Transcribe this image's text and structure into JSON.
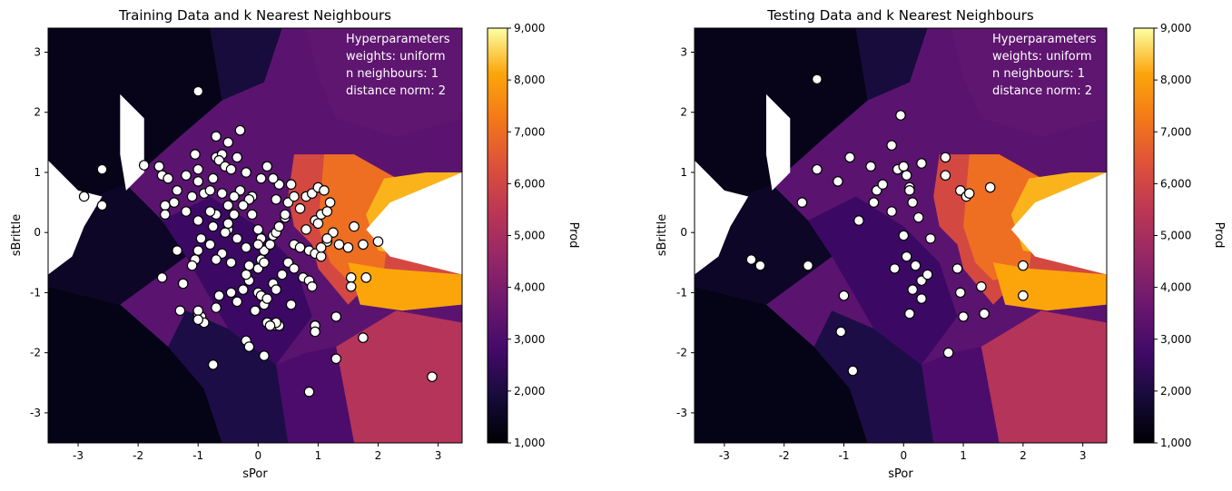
{
  "colorbar": {
    "label": "Prod",
    "ticks": [
      "1,000",
      "2,000",
      "3,000",
      "4,000",
      "5,000",
      "6,000",
      "7,000",
      "8,000",
      "9,000"
    ],
    "vmin": 1000,
    "vmax": 9000,
    "colormap": "inferno"
  },
  "hyperparameters": {
    "header": "Hyperparameters",
    "weights": "weights: uniform",
    "neighbours": "n neighbours: 1",
    "norm": "distance norm: 2"
  },
  "panels": [
    {
      "title": "Training Data and k Nearest Neighbours",
      "xlabel": "sPor",
      "ylabel": "sBrittle"
    },
    {
      "title": "Testing Data and k Nearest Neighbours",
      "xlabel": "sPor",
      "ylabel": "sBrittle"
    }
  ],
  "chart_data": [
    {
      "type": "scatter",
      "title": "Training Data and k Nearest Neighbours",
      "xlabel": "sPor",
      "ylabel": "sBrittle",
      "xlim": [
        -3.5,
        3.4
      ],
      "ylim": [
        -3.5,
        3.4
      ],
      "xticks": [
        "-3",
        "-2",
        "-1",
        "0",
        "1",
        "2",
        "3"
      ],
      "yticks": [
        "-3",
        "-2",
        "-1",
        "0",
        "1",
        "2",
        "3"
      ],
      "series": [
        {
          "x": [
            -1.0,
            -2.6,
            -2.6,
            -2.9,
            -1.9,
            -1.65,
            -1.6,
            -1.5,
            -1.4,
            -1.55,
            -1.55,
            -1.35,
            -1.2,
            -1.0,
            -1.0,
            -1.05,
            -1.2,
            -1.1,
            -0.9,
            -0.8,
            -0.75,
            -0.7,
            -0.6,
            -0.5,
            -0.7,
            -0.65,
            -0.55,
            -0.45,
            -0.35,
            -0.3,
            -0.2,
            -0.4,
            -0.5,
            -0.7,
            -0.8,
            -1.0,
            -0.95,
            -1.0,
            -0.8,
            -0.6,
            -0.5,
            -0.35,
            -0.2,
            -0.15,
            0.0,
            0.05,
            0.1,
            0.2,
            0.25,
            0.3,
            0.35,
            0.45,
            0.5,
            0.6,
            0.55,
            0.35,
            0.25,
            0.15,
            0.05,
            -0.1,
            -0.15,
            -0.3,
            -0.5,
            -0.55,
            -0.7,
            -1.05,
            -1.1,
            -1.25,
            -1.35,
            -1.6,
            -1.3,
            -1.0,
            -0.95,
            -0.9,
            -0.7,
            -0.65,
            -0.45,
            -0.35,
            -0.25,
            -0.15,
            0.0,
            0.05,
            0.1,
            0.15,
            0.25,
            0.3,
            0.4,
            0.5,
            0.6,
            0.7,
            0.85,
            0.95,
            1.05,
            1.15,
            1.25,
            1.35,
            1.5,
            1.6,
            1.75,
            2.0,
            0.8,
            0.9,
            1.0,
            1.1,
            1.2,
            0.95,
            1.05,
            1.15,
            1.0,
            0.8,
            0.7,
            0.45,
            0.3,
            0.0,
            -0.1,
            -0.25,
            -0.4,
            -0.6,
            -0.75,
            -0.45,
            -0.2,
            -0.05,
            0.15,
            0.3,
            1.55,
            1.55,
            1.8,
            -1.0,
            -1.0,
            -0.2,
            -0.15,
            0.1,
            0.35,
            0.55,
            0.95,
            0.95,
            1.3,
            1.3,
            1.75,
            0.85,
            -0.75,
            2.9,
            0.05,
            0.6,
            0.75,
            0.85,
            0.9,
            0.3,
            0.2,
            0.0,
            0.1,
            1.05,
            1.15
          ],
          "y": [
            2.35,
            1.05,
            0.45,
            0.6,
            1.12,
            1.1,
            0.95,
            0.9,
            0.5,
            0.45,
            0.3,
            0.7,
            0.35,
            0.85,
            1.05,
            1.3,
            0.95,
            0.6,
            0.65,
            0.7,
            0.9,
            1.25,
            1.3,
            1.5,
            1.6,
            1.2,
            1.1,
            1.05,
            1.25,
            1.7,
            1.0,
            0.3,
            0.45,
            0.3,
            0.35,
            0.2,
            -0.1,
            -0.3,
            -0.2,
            -0.35,
            0.05,
            -0.1,
            -0.25,
            -0.55,
            -0.6,
            -0.45,
            -0.3,
            -0.2,
            -0.05,
            0.0,
            0.1,
            0.25,
            0.5,
            0.6,
            0.8,
            0.8,
            0.9,
            1.1,
            0.9,
            0.6,
            0.55,
            0.7,
            0.15,
            0.0,
            -0.45,
            -0.45,
            -0.55,
            -0.85,
            -0.3,
            -0.75,
            -1.3,
            -1.35,
            -1.4,
            -1.5,
            -1.25,
            -1.05,
            -1.0,
            -1.15,
            -0.95,
            -0.8,
            -1.0,
            -1.05,
            -1.2,
            -1.1,
            -0.85,
            -0.95,
            -0.7,
            -0.5,
            -0.2,
            -0.25,
            -0.3,
            -0.35,
            -0.4,
            -0.15,
            0.0,
            -0.2,
            -0.25,
            0.1,
            -0.2,
            -0.15,
            0.6,
            0.65,
            0.75,
            0.7,
            0.5,
            0.2,
            0.3,
            0.35,
            0.15,
            0.05,
            0.4,
            0.3,
            0.55,
            0.05,
            0.3,
            0.45,
            0.6,
            0.65,
            0.1,
            -0.5,
            -0.7,
            -1.3,
            -1.5,
            -1.55,
            -0.75,
            -0.9,
            -0.75,
            -1.3,
            -1.45,
            -1.8,
            -1.9,
            -2.05,
            -1.55,
            -1.2,
            -1.55,
            -1.65,
            -1.4,
            -2.1,
            -1.75,
            -2.65,
            -2.2,
            -2.4,
            -0.1,
            -0.6,
            -0.75,
            -0.8,
            -0.9,
            -1.5,
            -1.55,
            -0.2,
            -0.5,
            -0.25,
            -0.1
          ],
          "marker_style": "white circles, black edge"
        }
      ]
    },
    {
      "type": "scatter",
      "title": "Testing Data and k Nearest Neighbours",
      "xlabel": "sPor",
      "ylabel": "sBrittle",
      "xlim": [
        -3.5,
        3.4
      ],
      "ylim": [
        -3.5,
        3.4
      ],
      "xticks": [
        "-3",
        "-2",
        "-1",
        "0",
        "1",
        "2",
        "3"
      ],
      "yticks": [
        "-3",
        "-2",
        "-1",
        "0",
        "1",
        "2",
        "3"
      ],
      "series": [
        {
          "x": [
            -1.45,
            -0.05,
            -1.45,
            -1.7,
            -1.1,
            -0.9,
            -0.55,
            -0.45,
            -0.35,
            -0.2,
            -0.1,
            0.0,
            0.05,
            0.15,
            0.25,
            0.1,
            -0.5,
            -0.75,
            -0.2,
            0.0,
            0.1,
            0.3,
            0.45,
            0.7,
            0.7,
            0.95,
            1.05,
            1.1,
            1.45,
            -2.55,
            -2.4,
            -1.6,
            -1.0,
            -0.15,
            0.05,
            0.15,
            0.3,
            0.4,
            0.1,
            0.3,
            0.2,
            0.9,
            0.95,
            1.0,
            1.3,
            1.35,
            2.0,
            2.0,
            -1.05,
            -0.85,
            0.75
          ],
          "y": [
            2.55,
            1.95,
            1.05,
            0.5,
            0.85,
            1.25,
            1.1,
            0.7,
            0.8,
            1.45,
            1.05,
            1.1,
            0.95,
            0.5,
            0.25,
            0.75,
            0.5,
            0.2,
            0.35,
            -0.05,
            0.7,
            1.15,
            -0.1,
            0.95,
            1.25,
            0.7,
            0.6,
            0.65,
            0.75,
            -0.45,
            -0.55,
            -0.55,
            -1.05,
            -0.6,
            -0.4,
            -0.95,
            -0.8,
            -0.7,
            -1.35,
            -1.1,
            -0.55,
            -0.6,
            -1.0,
            -1.4,
            -0.9,
            -1.35,
            -0.55,
            -1.05,
            -1.65,
            -2.3,
            -2.0
          ],
          "marker_style": "white circles, black edge"
        }
      ]
    }
  ]
}
